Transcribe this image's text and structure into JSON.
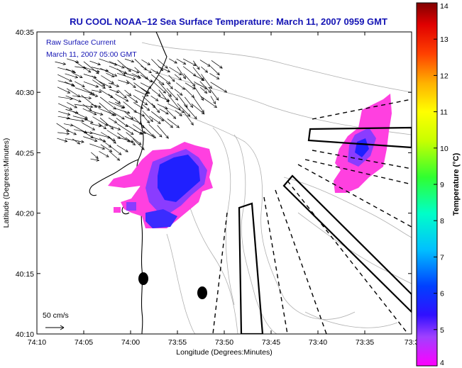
{
  "title": "RU COOL  NOAA−12  Sea Surface Temperature:  March 11, 2007 0959 GMT",
  "annotation": {
    "line1": "Raw Surface Current",
    "line2": "March 11, 2007 05:00 GMT"
  },
  "scale_label": "50 cm/s",
  "axes": {
    "xlabel": "Longitude (Degrees:Minutes)",
    "ylabel": "Latitude (Degrees:Minutes)",
    "xticks": [
      "74:10",
      "74:05",
      "74:00",
      "73:55",
      "73:50",
      "73:45",
      "73:40",
      "73:35",
      "73:3"
    ],
    "yticks": [
      "40:35",
      "40:30",
      "40:25",
      "40:20",
      "40:15",
      "40:10"
    ]
  },
  "colorbar": {
    "label": "Temperature (°C)",
    "ticks": [
      "14",
      "13",
      "12",
      "11",
      "10",
      "9",
      "8",
      "7",
      "6",
      "5",
      "4"
    ],
    "min": 4,
    "max": 14
  },
  "colors": {
    "title": "#1414b4",
    "sst_cold": "#2020ff",
    "sst_mid": "#8a3cff",
    "sst_warm": "#ff40e0",
    "bathymetry": "#b0b0b0",
    "coast": "#000000"
  }
}
